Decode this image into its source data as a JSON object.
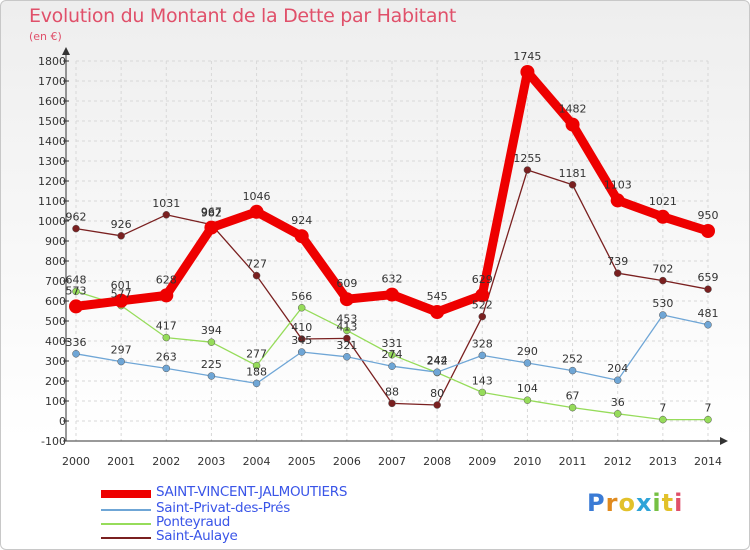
{
  "title": "Evolution du Montant de la Dette par Habitant",
  "unit_label": "(en €)",
  "logo": {
    "text": "Proxiti",
    "letters": [
      "P",
      "r",
      "o",
      "x",
      "i",
      "t",
      "i"
    ],
    "colors": [
      "#3a7bd5",
      "#e08a1e",
      "#e2c12a",
      "#2ea4d8",
      "#76c043",
      "#e2c12a",
      "#e0506a"
    ]
  },
  "chart_data": {
    "type": "line",
    "x": [
      "2000",
      "2001",
      "2002",
      "2003",
      "2004",
      "2005",
      "2006",
      "2007",
      "2008",
      "2009",
      "2010",
      "2011",
      "2012",
      "2013",
      "2014"
    ],
    "ylim": [
      -100,
      1800
    ],
    "yticks": [
      "-100",
      "0",
      "100",
      "200",
      "300",
      "400",
      "500",
      "600",
      "700",
      "800",
      "900",
      "1000",
      "1100",
      "1200",
      "1300",
      "1400",
      "1500",
      "1600",
      "1700",
      "1800"
    ],
    "grid": true,
    "legend_position": "bottom-left",
    "series": [
      {
        "name": "SAINT-VINCENT-JALMOUTIERS",
        "color": "#ee0000",
        "values": [
          573,
          601,
          628,
          967,
          1046,
          924,
          609,
          632,
          545,
          629,
          1745,
          1482,
          1103,
          1021,
          950
        ],
        "labels": [
          "573",
          "601",
          "628",
          "967",
          "1046",
          "924",
          "609",
          "632",
          "545",
          "629",
          "1745",
          "1482",
          "1103",
          "1021",
          "950"
        ]
      },
      {
        "name": "Saint-Privat-des-Prés",
        "color": "#6fa6d6",
        "values": [
          336,
          297,
          263,
          225,
          188,
          345,
          321,
          274,
          244,
          328,
          290,
          252,
          204,
          530,
          481
        ],
        "labels": [
          "336",
          "297",
          "263",
          "225",
          "188",
          "345",
          "321",
          "274",
          "244",
          "328",
          "290",
          "252",
          "204",
          "530",
          "481"
        ]
      },
      {
        "name": "Ponteyraud",
        "color": "#96dc5a",
        "values": [
          648,
          577,
          417,
          394,
          277,
          566,
          453,
          331,
          242,
          143,
          104,
          67,
          36,
          7,
          7
        ],
        "labels": [
          "648",
          "577",
          "417",
          "394",
          "277",
          "566",
          "453",
          "331",
          "242",
          "143",
          "104",
          "67",
          "36",
          "7",
          "7"
        ]
      },
      {
        "name": "Saint-Aulaye",
        "color": "#7a2020",
        "values": [
          962,
          926,
          1031,
          982,
          727,
          410,
          413,
          88,
          80,
          522,
          1255,
          1181,
          739,
          702,
          659
        ],
        "labels": [
          "962",
          "926",
          "1031",
          "982",
          "727",
          "410",
          "413",
          "88",
          "80",
          "522",
          "1255",
          "1181",
          "739",
          "702",
          "659"
        ]
      }
    ]
  }
}
